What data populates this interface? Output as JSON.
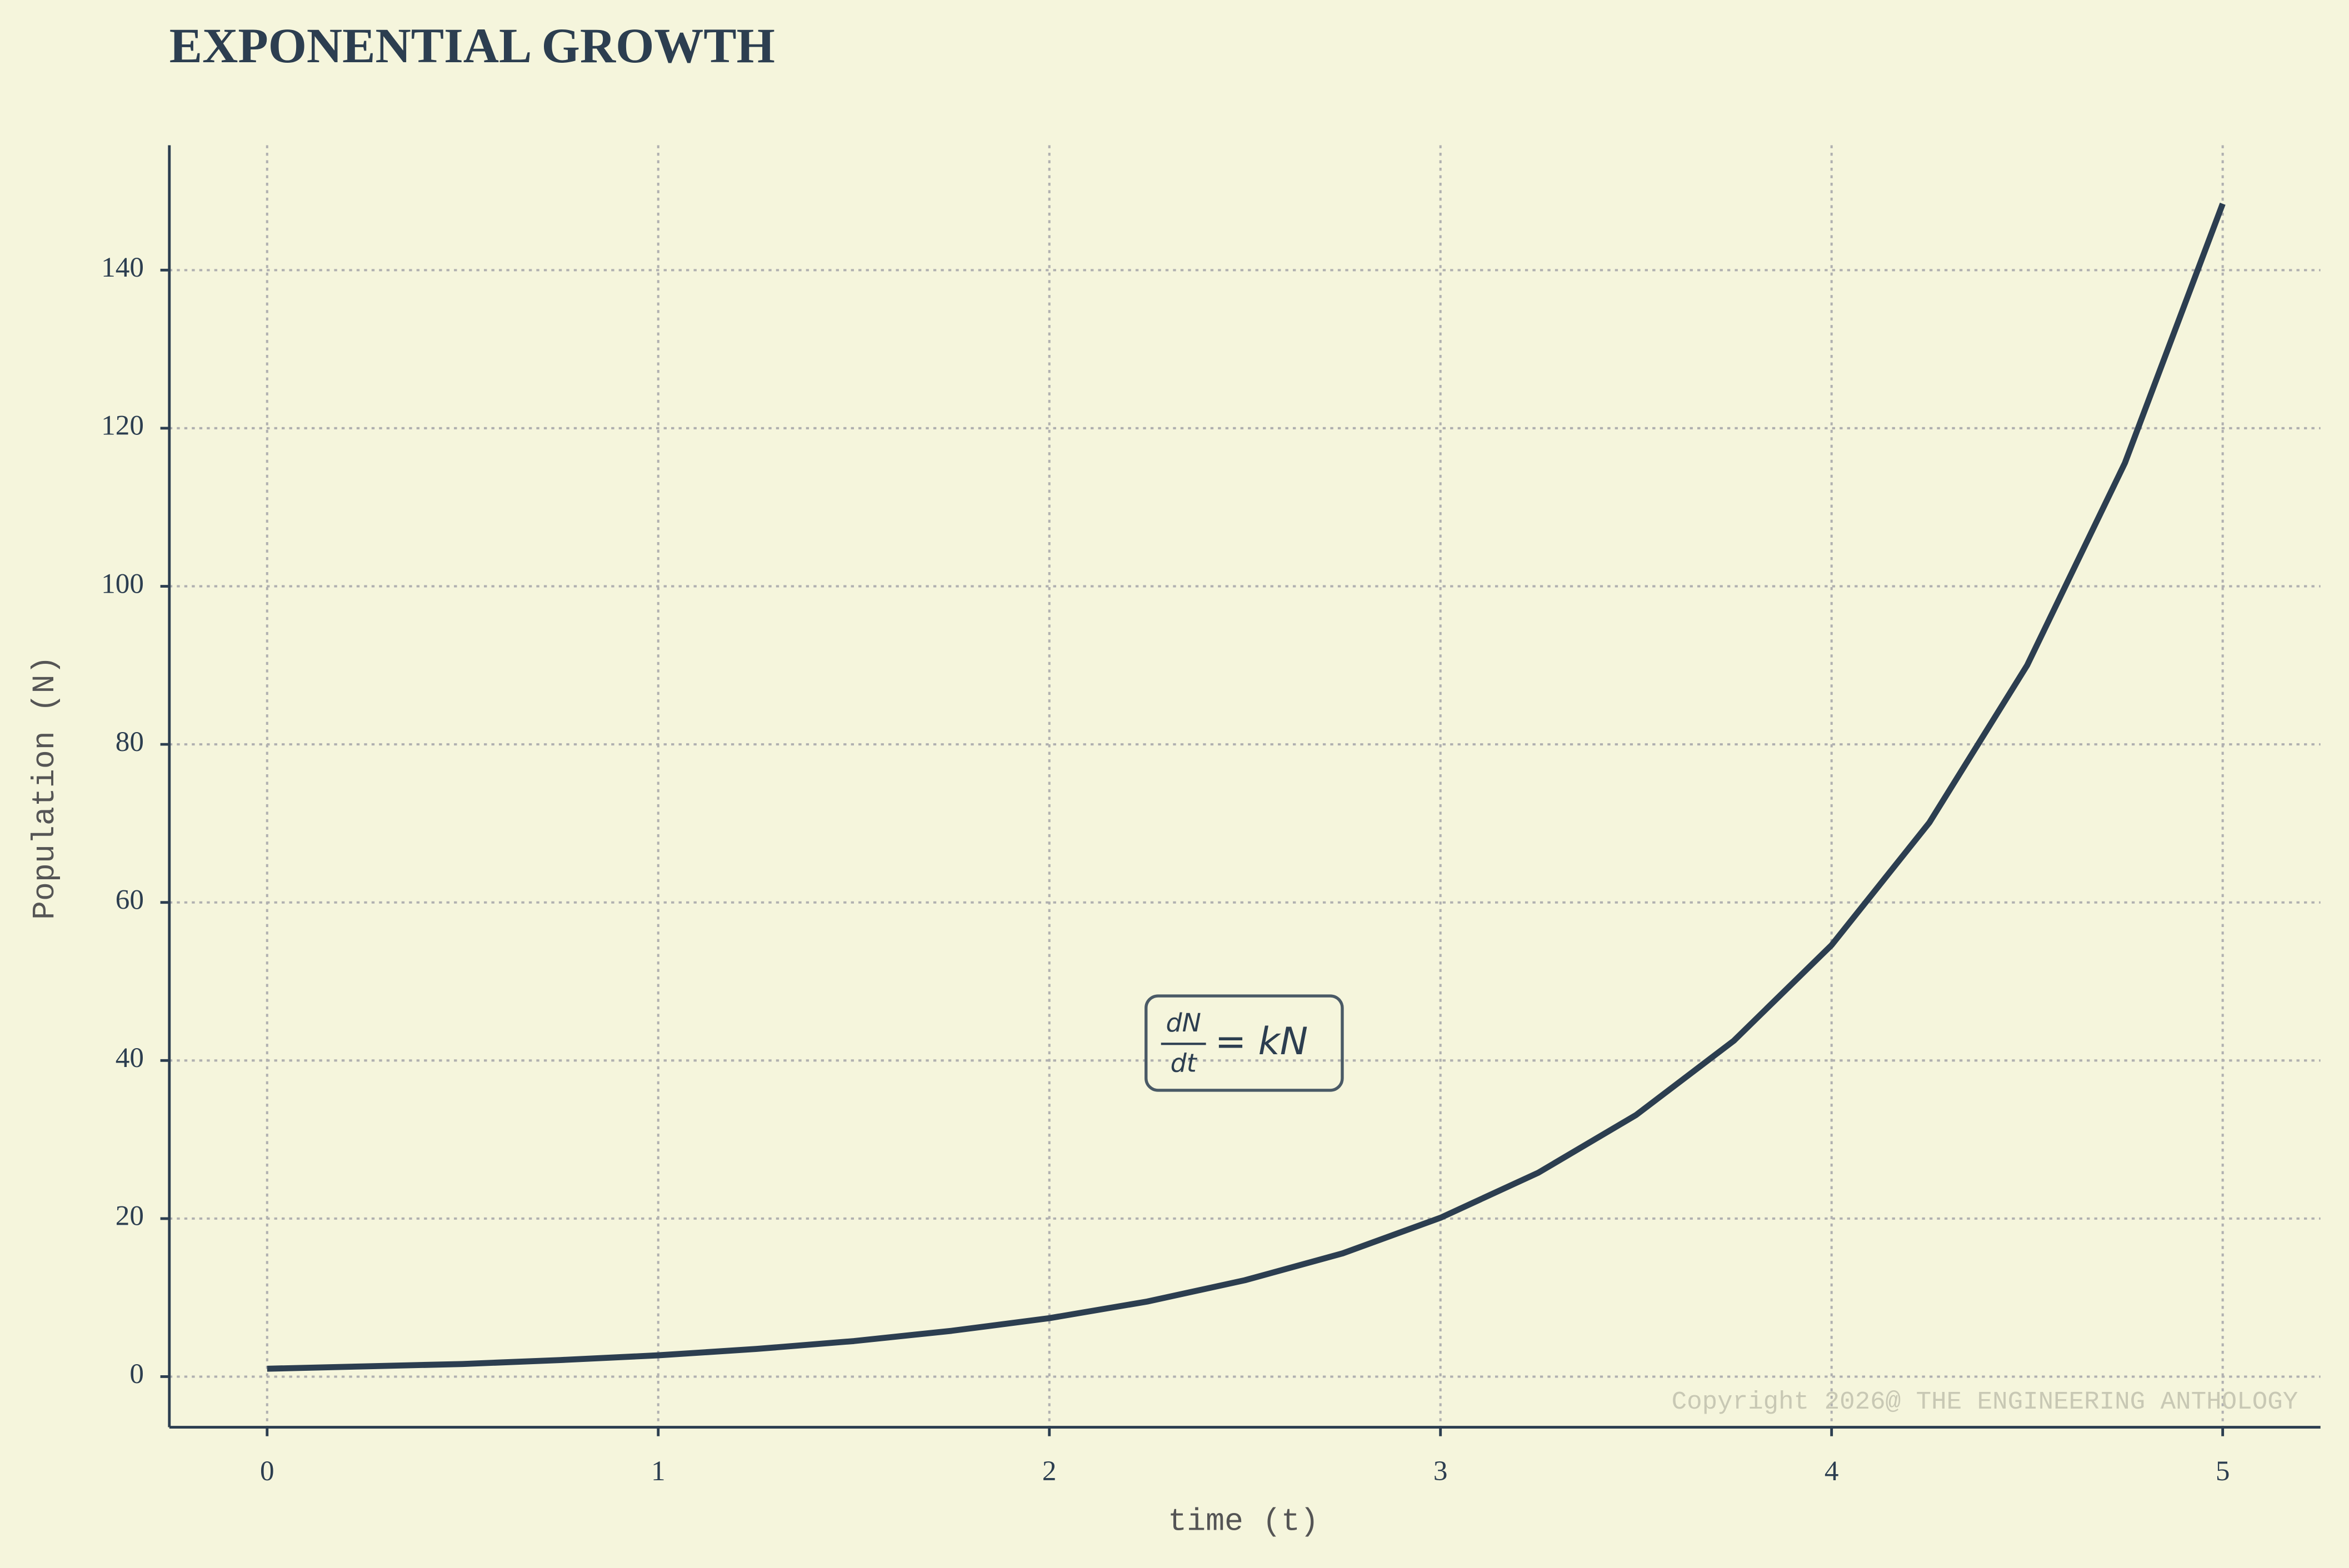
{
  "chart_data": {
    "type": "line",
    "title": "EXPONENTIAL GROWTH",
    "xlabel": "time (t)",
    "ylabel": "Population (N)",
    "x": [
      0,
      0.25,
      0.5,
      0.75,
      1,
      1.25,
      1.5,
      1.75,
      2,
      2.25,
      2.5,
      2.75,
      3,
      3.25,
      3.5,
      3.75,
      4,
      4.25,
      4.5,
      4.75,
      5
    ],
    "values": [
      1.0,
      1.3,
      1.6,
      2.1,
      2.7,
      3.5,
      4.5,
      5.8,
      7.4,
      9.5,
      12.2,
      15.6,
      20.1,
      25.8,
      33.1,
      42.5,
      54.6,
      70.1,
      90.0,
      115.6,
      148.4
    ],
    "color": "#2c3e50",
    "xlim": [
      -0.25,
      5.25
    ],
    "xticks": [
      0,
      1,
      2,
      3,
      4,
      5
    ],
    "ylim": [
      -6.4,
      155.8
    ],
    "yticks": [
      0,
      20,
      40,
      60,
      80,
      100,
      120,
      140
    ],
    "grid": true,
    "annotation": {
      "numerator": "dN",
      "denominator": "dt",
      "rhs": "= kN"
    },
    "watermark": "Copyright 2026@ THE ENGINEERING ANTHOLOGY"
  }
}
